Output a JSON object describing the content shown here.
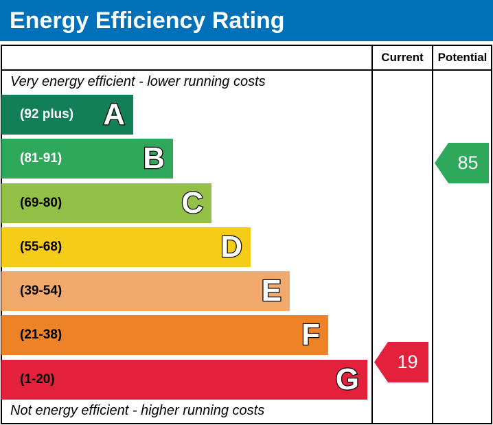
{
  "title": "Energy Efficiency Rating",
  "columns": {
    "current": "Current",
    "potential": "Potential"
  },
  "notes": {
    "top": "Very energy efficient - lower running costs",
    "bottom": "Not energy efficient - higher running costs"
  },
  "chart_data": {
    "type": "bar",
    "categories": [
      "A",
      "B",
      "C",
      "D",
      "E",
      "F",
      "G"
    ],
    "ranges": [
      "(92 plus)",
      "(81-91)",
      "(69-80)",
      "(55-68)",
      "(39-54)",
      "(21-38)",
      "(1-20)"
    ],
    "colors": [
      "#127f58",
      "#2ea85a",
      "#93c047",
      "#f5cc18",
      "#f2aa6c",
      "#ee8226",
      "#e3213c"
    ],
    "range_text_colors": [
      "#ffffff",
      "#ffffff",
      "#000000",
      "#000000",
      "#000000",
      "#000000",
      "#000000"
    ],
    "current": {
      "value": "19",
      "band": "G",
      "color": "#e3213c"
    },
    "potential": {
      "value": "85",
      "band": "B",
      "color": "#2ea85a"
    }
  }
}
